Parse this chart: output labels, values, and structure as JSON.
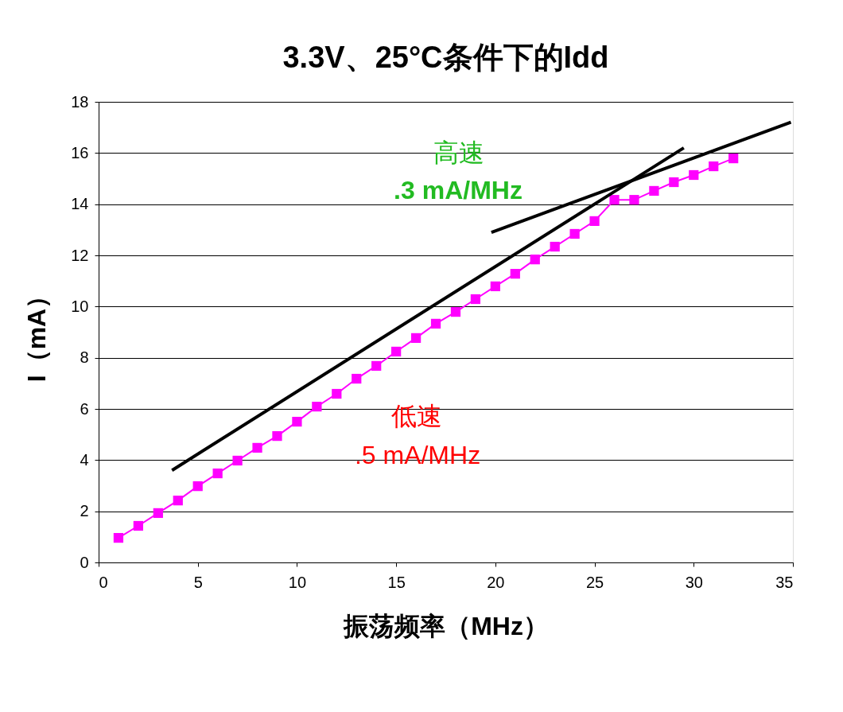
{
  "chart_data": {
    "type": "line",
    "title": "3.3V、25°C条件下的Idd",
    "xlabel": "振荡频率（MHz）",
    "ylabel": "I（mA）",
    "xlim": [
      0,
      35
    ],
    "xticks": [
      0,
      5,
      10,
      15,
      20,
      25,
      30,
      35
    ],
    "ylim": [
      0,
      18
    ],
    "yticks": [
      0,
      2,
      4,
      6,
      8,
      10,
      12,
      14,
      16,
      18
    ],
    "grid": "y",
    "legend": false,
    "series": [
      {
        "type": "line",
        "color": "#ff00ff",
        "marker": "square",
        "line_style": "solid",
        "x": [
          1,
          2,
          3,
          4,
          5,
          6,
          7,
          8,
          9,
          10,
          11,
          12,
          13,
          14,
          15,
          16,
          17,
          18,
          19,
          20,
          21,
          22,
          23,
          24,
          25,
          26,
          27,
          28,
          29,
          30,
          31,
          32
        ],
        "values": [
          0.96,
          1.43,
          1.93,
          2.42,
          2.98,
          3.48,
          3.98,
          4.48,
          4.94,
          5.5,
          6.09,
          6.59,
          7.18,
          7.68,
          8.24,
          8.77,
          9.33,
          9.79,
          10.29,
          10.79,
          11.28,
          11.84,
          12.34,
          12.84,
          13.34,
          14.17,
          14.17,
          14.52,
          14.86,
          15.14,
          15.48,
          15.79
        ]
      },
      {
        "type": "line",
        "color": "#000000",
        "marker": "none",
        "line_style": "solid",
        "x": [
          3.7,
          29.5
        ],
        "values": [
          3.6,
          16.2
        ]
      },
      {
        "type": "line",
        "color": "#000000",
        "marker": "none",
        "line_style": "solid",
        "x": [
          19.8,
          34.9
        ],
        "values": [
          12.9,
          17.2
        ]
      }
    ],
    "annotations": [
      "高速",
      ".3 mA/MHz",
      "低速",
      ".5 mA/MHz"
    ]
  }
}
